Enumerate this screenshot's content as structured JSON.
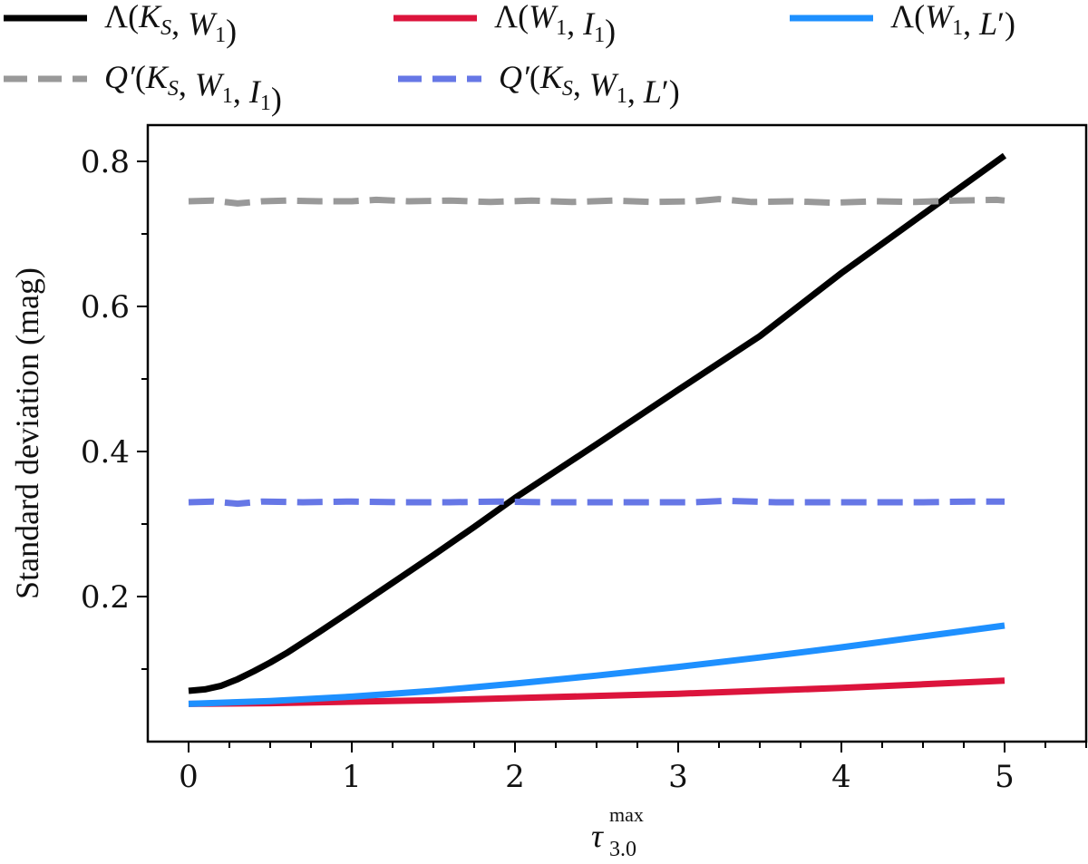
{
  "chart_data": {
    "type": "line",
    "title": "",
    "xlabel": {
      "base": "τ",
      "sub": "3.0",
      "sup": "max"
    },
    "ylabel": "Standard deviation (mag)",
    "xlim": [
      -0.25,
      5.5
    ],
    "ylim": [
      0.0,
      0.85
    ],
    "x_ticks": [
      0,
      1,
      2,
      3,
      4,
      5
    ],
    "x_tick_labels": [
      "0",
      "1",
      "2",
      "3",
      "4",
      "5"
    ],
    "x_minor_step": 0.25,
    "y_ticks": [
      0.2,
      0.4,
      0.6,
      0.8
    ],
    "y_tick_labels": [
      "0.2",
      "0.4",
      "0.6",
      "0.8"
    ],
    "y_minor_step": 0.1,
    "grid": false,
    "legend_position": "top, outside plot (3 columns)",
    "series": [
      {
        "name": "Λ(K_S, W_1)",
        "legend": {
          "f": "Λ",
          "args": [
            {
              "t": "K",
              "sub": "S"
            },
            {
              "t": "W",
              "sub": "1"
            }
          ]
        },
        "color": "#000000",
        "style": "solid",
        "x": [
          0,
          0.1,
          0.2,
          0.3,
          0.4,
          0.5,
          0.6,
          0.8,
          1.0,
          1.25,
          1.5,
          1.75,
          2.0,
          2.5,
          3.0,
          3.5,
          4.0,
          4.5,
          5.0
        ],
        "values": [
          0.07,
          0.072,
          0.077,
          0.086,
          0.097,
          0.109,
          0.122,
          0.151,
          0.181,
          0.219,
          0.257,
          0.296,
          0.336,
          0.41,
          0.485,
          0.559,
          0.646,
          0.727,
          0.808
        ]
      },
      {
        "name": "Λ(W_1, I_1)",
        "legend": {
          "f": "Λ",
          "args": [
            {
              "t": "W",
              "sub": "1"
            },
            {
              "t": "I",
              "sub": "1"
            }
          ]
        },
        "color": "#dc143c",
        "style": "solid",
        "x": [
          0,
          0.5,
          1.0,
          1.5,
          2.0,
          2.5,
          3.0,
          3.5,
          4.0,
          4.5,
          5.0
        ],
        "values": [
          0.052,
          0.053,
          0.055,
          0.057,
          0.06,
          0.063,
          0.066,
          0.07,
          0.074,
          0.079,
          0.084
        ]
      },
      {
        "name": "Λ(W_1, L′)",
        "legend": {
          "f": "Λ",
          "args": [
            {
              "t": "W",
              "sub": "1"
            },
            {
              "t": "L",
              "prime": true
            }
          ]
        },
        "color": "#1e90ff",
        "style": "solid",
        "x": [
          0,
          0.5,
          1.0,
          1.5,
          2.0,
          2.5,
          3.0,
          3.5,
          4.0,
          4.5,
          5.0
        ],
        "values": [
          0.052,
          0.056,
          0.062,
          0.07,
          0.08,
          0.091,
          0.103,
          0.116,
          0.13,
          0.145,
          0.16
        ]
      },
      {
        "name": "Q′(K_S, W_1, I_1)",
        "legend": {
          "f": "Q′",
          "args": [
            {
              "t": "K",
              "sub": "S"
            },
            {
              "t": "W",
              "sub": "1"
            },
            {
              "t": "I",
              "sub": "1"
            }
          ]
        },
        "color": "#999999",
        "style": "dashed",
        "x": [
          0,
          0.15,
          0.3,
          0.45,
          0.6,
          0.8,
          1.0,
          1.15,
          1.35,
          1.6,
          1.85,
          2.1,
          2.35,
          2.6,
          2.85,
          3.1,
          3.25,
          3.45,
          3.7,
          3.95,
          4.2,
          4.45,
          4.7,
          4.95,
          5.0
        ],
        "values": [
          0.745,
          0.746,
          0.742,
          0.745,
          0.746,
          0.745,
          0.745,
          0.747,
          0.745,
          0.746,
          0.744,
          0.746,
          0.744,
          0.746,
          0.744,
          0.745,
          0.748,
          0.744,
          0.745,
          0.743,
          0.745,
          0.744,
          0.746,
          0.747,
          0.746
        ]
      },
      {
        "name": "Q′(K_S, W_1, L′)",
        "legend": {
          "f": "Q′",
          "args": [
            {
              "t": "K",
              "sub": "S"
            },
            {
              "t": "W",
              "sub": "1"
            },
            {
              "t": "L",
              "prime": true
            }
          ]
        },
        "color": "#6677e6",
        "style": "dashed",
        "x": [
          0,
          0.15,
          0.3,
          0.45,
          0.7,
          1.0,
          1.3,
          1.6,
          1.9,
          2.2,
          2.5,
          2.8,
          3.1,
          3.3,
          3.6,
          3.9,
          4.2,
          4.5,
          4.8,
          5.0
        ],
        "values": [
          0.33,
          0.331,
          0.328,
          0.331,
          0.33,
          0.331,
          0.33,
          0.33,
          0.331,
          0.33,
          0.33,
          0.33,
          0.33,
          0.332,
          0.33,
          0.33,
          0.33,
          0.33,
          0.331,
          0.331
        ]
      }
    ]
  }
}
